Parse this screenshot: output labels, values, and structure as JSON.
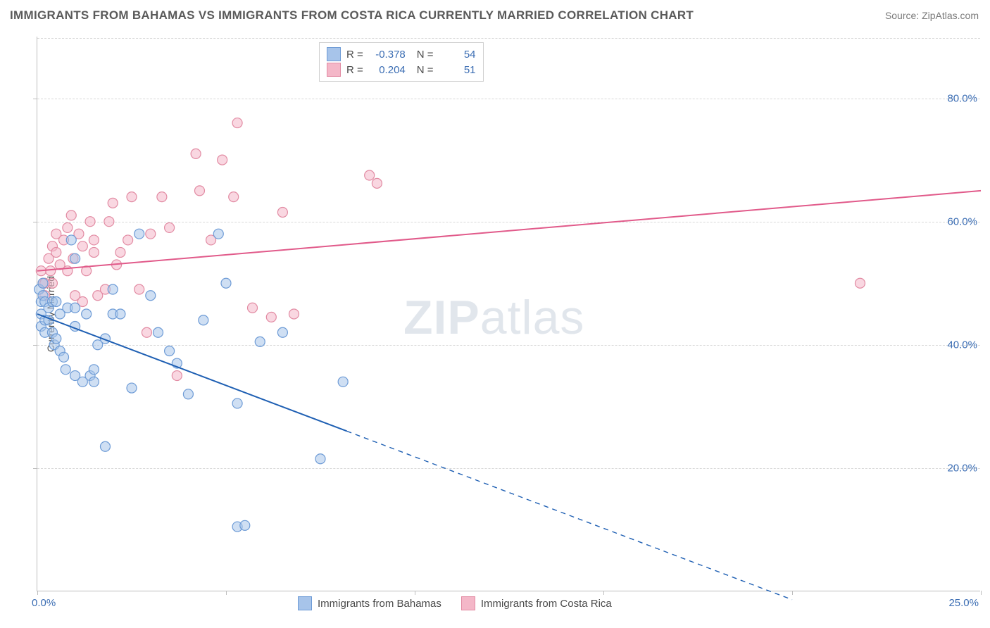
{
  "title": "IMMIGRANTS FROM BAHAMAS VS IMMIGRANTS FROM COSTA RICA CURRENTLY MARRIED CORRELATION CHART",
  "source": "Source: ZipAtlas.com",
  "watermark": {
    "bold": "ZIP",
    "rest": "atlas"
  },
  "ylabel": "Currently Married",
  "chart": {
    "type": "scatter-with-regression",
    "background_color": "#ffffff",
    "grid_color": "#d8d8d8",
    "axis_color": "#bdbdbd",
    "text_color": "#4a4a4a",
    "value_color": "#3b6db3",
    "title_fontsize": 17,
    "label_fontsize": 14,
    "tick_fontsize": 15,
    "xlim": [
      0,
      25
    ],
    "ylim": [
      0,
      90
    ],
    "xtick_positions": [
      0,
      5,
      10,
      15,
      20,
      25
    ],
    "xtick_labels_shown": {
      "0": "0.0%",
      "25": "25.0%"
    },
    "ytick_positions": [
      20,
      40,
      60,
      80
    ],
    "ytick_labels": [
      "20.0%",
      "40.0%",
      "60.0%",
      "80.0%"
    ],
    "marker_radius": 7,
    "marker_opacity": 0.55,
    "line_width": 2,
    "series": [
      {
        "name": "Immigrants from Bahamas",
        "key": "bahamas",
        "color_fill": "#a7c4ea",
        "color_stroke": "#6d9bd6",
        "line_color": "#1e5fb3",
        "R": -0.378,
        "N": 54,
        "regression": {
          "x0": 0,
          "y0": 45,
          "x1": 8.2,
          "y1": 26,
          "extrapolate_to_x": 20,
          "dash_after_x": 8.2
        },
        "points": [
          [
            0.05,
            49
          ],
          [
            0.1,
            47
          ],
          [
            0.1,
            45
          ],
          [
            0.1,
            43
          ],
          [
            0.15,
            50
          ],
          [
            0.15,
            48
          ],
          [
            0.2,
            44
          ],
          [
            0.2,
            42
          ],
          [
            0.2,
            47
          ],
          [
            0.3,
            46
          ],
          [
            0.3,
            44
          ],
          [
            0.4,
            47
          ],
          [
            0.4,
            42
          ],
          [
            0.45,
            40
          ],
          [
            0.5,
            47
          ],
          [
            0.5,
            41
          ],
          [
            0.6,
            45
          ],
          [
            0.6,
            39
          ],
          [
            0.7,
            38
          ],
          [
            0.75,
            36
          ],
          [
            0.8,
            46
          ],
          [
            0.9,
            57
          ],
          [
            1.0,
            54
          ],
          [
            1.0,
            46
          ],
          [
            1.0,
            43
          ],
          [
            1.0,
            35
          ],
          [
            1.2,
            34
          ],
          [
            1.3,
            45
          ],
          [
            1.4,
            35
          ],
          [
            1.5,
            36
          ],
          [
            1.5,
            34
          ],
          [
            1.6,
            40
          ],
          [
            1.8,
            41
          ],
          [
            1.8,
            23.5
          ],
          [
            2.0,
            45
          ],
          [
            2.0,
            49
          ],
          [
            2.2,
            45
          ],
          [
            2.5,
            33
          ],
          [
            2.7,
            58
          ],
          [
            3.0,
            48
          ],
          [
            3.2,
            42
          ],
          [
            3.5,
            39
          ],
          [
            3.7,
            37
          ],
          [
            4.0,
            32
          ],
          [
            4.4,
            44
          ],
          [
            4.8,
            58
          ],
          [
            5.0,
            50
          ],
          [
            5.3,
            30.5
          ],
          [
            5.3,
            10.5
          ],
          [
            5.5,
            10.7
          ],
          [
            5.9,
            40.5
          ],
          [
            6.5,
            42
          ],
          [
            7.5,
            21.5
          ],
          [
            8.1,
            34
          ]
        ]
      },
      {
        "name": "Immigrants from Costa Rica",
        "key": "costarica",
        "color_fill": "#f4b7c8",
        "color_stroke": "#e28ba3",
        "line_color": "#e15a8a",
        "R": 0.204,
        "N": 51,
        "regression": {
          "x0": 0,
          "y0": 52,
          "x1": 25,
          "y1": 65
        },
        "points": [
          [
            0.1,
            52
          ],
          [
            0.15,
            50
          ],
          [
            0.2,
            50
          ],
          [
            0.2,
            48
          ],
          [
            0.3,
            54
          ],
          [
            0.35,
            52
          ],
          [
            0.4,
            50
          ],
          [
            0.4,
            56
          ],
          [
            0.5,
            55
          ],
          [
            0.5,
            58
          ],
          [
            0.6,
            53
          ],
          [
            0.7,
            57
          ],
          [
            0.8,
            52
          ],
          [
            0.8,
            59
          ],
          [
            0.9,
            61
          ],
          [
            0.95,
            54
          ],
          [
            1.0,
            48
          ],
          [
            1.1,
            58
          ],
          [
            1.2,
            56
          ],
          [
            1.2,
            47
          ],
          [
            1.3,
            52
          ],
          [
            1.4,
            60
          ],
          [
            1.5,
            55
          ],
          [
            1.5,
            57
          ],
          [
            1.6,
            48
          ],
          [
            1.8,
            49
          ],
          [
            1.9,
            60
          ],
          [
            2.0,
            63
          ],
          [
            2.1,
            53
          ],
          [
            2.2,
            55
          ],
          [
            2.4,
            57
          ],
          [
            2.5,
            64
          ],
          [
            2.7,
            49
          ],
          [
            2.9,
            42
          ],
          [
            3.0,
            58
          ],
          [
            3.3,
            64
          ],
          [
            3.5,
            59
          ],
          [
            3.7,
            35
          ],
          [
            4.2,
            71
          ],
          [
            4.3,
            65
          ],
          [
            4.6,
            57
          ],
          [
            4.9,
            70
          ],
          [
            5.2,
            64
          ],
          [
            5.3,
            76
          ],
          [
            5.7,
            46
          ],
          [
            6.2,
            44.5
          ],
          [
            6.5,
            61.5
          ],
          [
            6.8,
            45
          ],
          [
            8.8,
            67.5
          ],
          [
            9.0,
            66.2
          ],
          [
            21.8,
            50
          ]
        ]
      }
    ]
  },
  "legend_top_labels": {
    "R": "R =",
    "N": "N ="
  },
  "legend_bottom": [
    {
      "swatch_fill": "#a7c4ea",
      "swatch_stroke": "#6d9bd6",
      "label": "Immigrants from Bahamas"
    },
    {
      "swatch_fill": "#f4b7c8",
      "swatch_stroke": "#e28ba3",
      "label": "Immigrants from Costa Rica"
    }
  ]
}
